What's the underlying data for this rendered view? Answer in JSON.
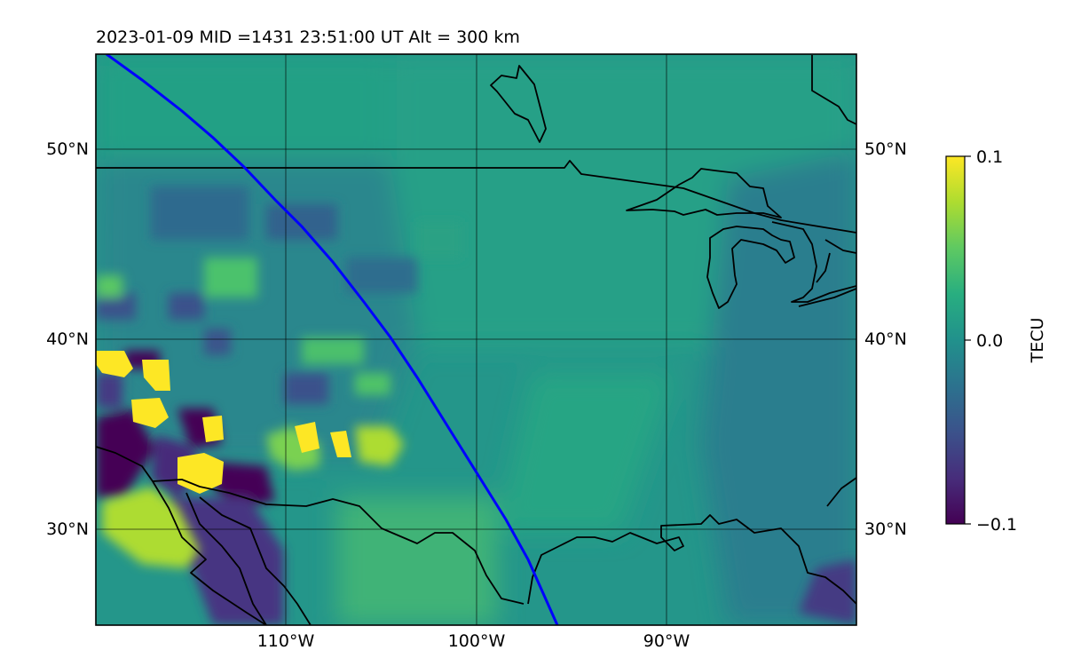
{
  "title": "2023-01-09  MID =1431    23:51:00  UT  Alt = 300 km",
  "map": {
    "lat_ticks": [
      "50°N",
      "40°N",
      "30°N"
    ],
    "lon_ticks": [
      "110°W",
      "100°W",
      "90°W"
    ],
    "lat_values": [
      50,
      40,
      30
    ],
    "lon_values": [
      -110,
      -100,
      -90
    ],
    "lon_range": [
      -120,
      -80
    ],
    "lat_range": [
      25,
      55
    ],
    "colors": {
      "background": "#21918c",
      "coastline": "#000000",
      "track": "#0000ff",
      "grid": "#000000"
    }
  },
  "colorbar": {
    "label": "TECU",
    "ticks": [
      "0.1",
      "0.0",
      "−0.1"
    ],
    "tick_values": [
      0.1,
      0.0,
      -0.1
    ],
    "colormap": "viridis",
    "colors": [
      "#440154",
      "#3b528b",
      "#21918c",
      "#5ec962",
      "#fde725"
    ]
  }
}
